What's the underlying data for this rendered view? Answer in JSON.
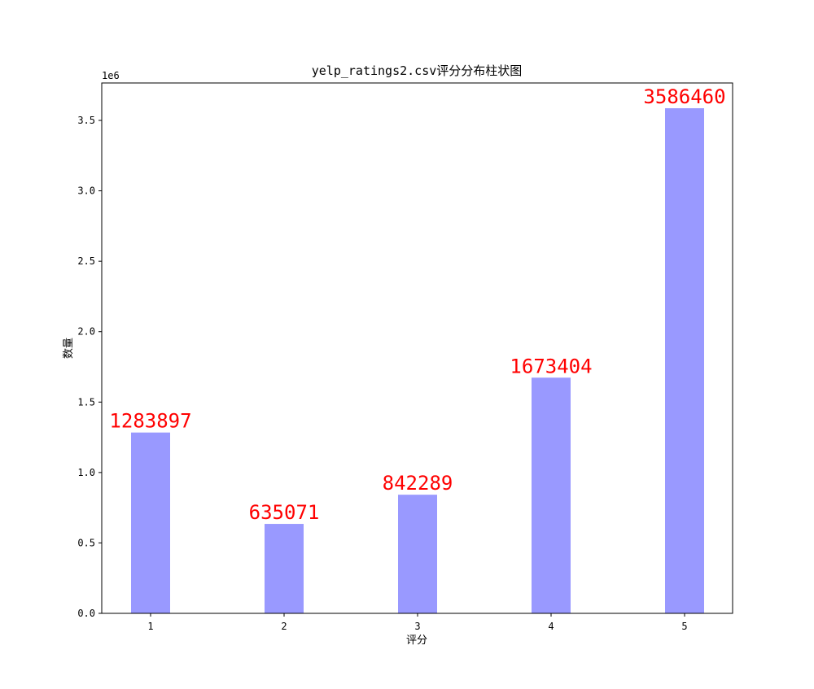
{
  "chart_data": {
    "type": "bar",
    "title": "yelp_ratings2.csv评分分布柱状图",
    "xlabel": "评分",
    "ylabel": "数量",
    "y_offset_label": "1e6",
    "categories": [
      "1",
      "2",
      "3",
      "4",
      "5"
    ],
    "values": [
      1283897,
      635071,
      842289,
      1673404,
      3586460
    ],
    "data_labels": [
      "1283897",
      "635071",
      "842289",
      "1673404",
      "3586460"
    ],
    "ylim": [
      0,
      3765783
    ],
    "yticks": [
      0,
      500000,
      1000000,
      1500000,
      2000000,
      2500000,
      3000000,
      3500000
    ],
    "ytick_labels": [
      "0.0",
      "0.5",
      "1.0",
      "1.5",
      "2.0",
      "2.5",
      "3.0",
      "3.5"
    ],
    "bar_color": "#9999ff",
    "label_color": "#ff0000",
    "grid": false,
    "legend": false
  }
}
